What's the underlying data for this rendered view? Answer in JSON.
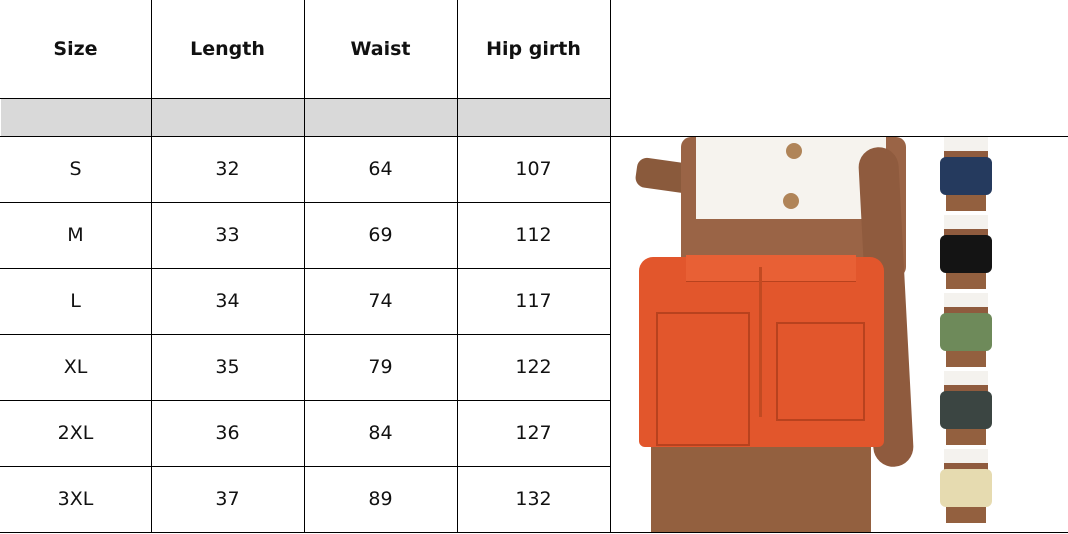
{
  "size_chart": {
    "headers": [
      "Size",
      "Length",
      "Waist",
      "Hip girth"
    ],
    "rows": [
      [
        "S",
        "32",
        "64",
        "107"
      ],
      [
        "M",
        "33",
        "69",
        "112"
      ],
      [
        "L",
        "34",
        "74",
        "117"
      ],
      [
        "XL",
        "35",
        "79",
        "122"
      ],
      [
        "2XL",
        "36",
        "84",
        "127"
      ],
      [
        "3XL",
        "37",
        "89",
        "132"
      ]
    ]
  },
  "product_photo": {
    "main_color": "#e2562c",
    "color_variants": [
      "#253a5e",
      "#141414",
      "#6e8a5a",
      "#3b4542",
      "#e6dbb0"
    ]
  }
}
